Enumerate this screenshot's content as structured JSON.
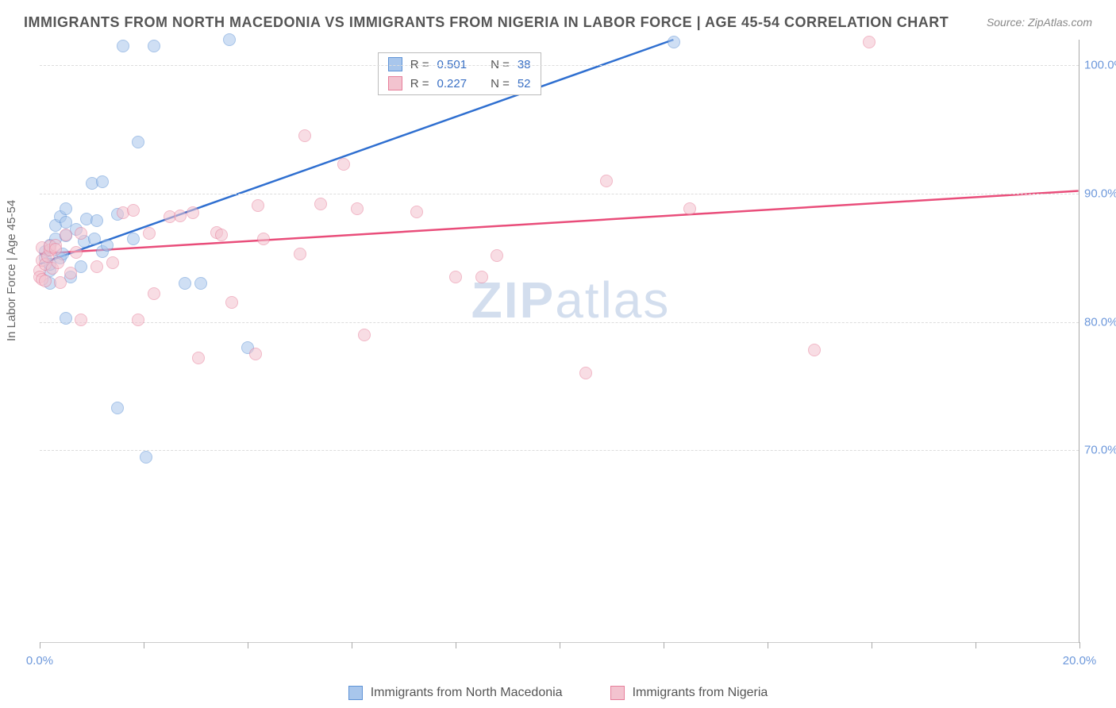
{
  "title": "IMMIGRANTS FROM NORTH MACEDONIA VS IMMIGRANTS FROM NIGERIA IN LABOR FORCE | AGE 45-54 CORRELATION CHART",
  "source": "Source: ZipAtlas.com",
  "y_axis_label": "In Labor Force | Age 45-54",
  "watermark_bold": "ZIP",
  "watermark_rest": "atlas",
  "watermark_color": "#d3deee",
  "chart": {
    "type": "scatter",
    "background_color": "#ffffff",
    "grid_color": "#dddddd",
    "axis_color": "#aaaaaa",
    "tick_label_color": "#6d98db",
    "xlim": [
      0,
      20
    ],
    "ylim": [
      55,
      102
    ],
    "x_ticks": [
      0,
      2,
      4,
      6,
      8,
      10,
      12,
      14,
      16,
      18,
      20
    ],
    "x_tick_labels": {
      "0": "0.0%",
      "20": "20.0%"
    },
    "y_ticks": [
      70,
      80,
      90,
      100
    ],
    "y_tick_labels": {
      "70": "70.0%",
      "80": "80.0%",
      "90": "90.0%",
      "100": "100.0%"
    },
    "marker_radius": 8,
    "marker_opacity": 0.55,
    "line_width": 2.5,
    "series": [
      {
        "name": "Immigrants from North Macedonia",
        "fill_color": "#a8c6ec",
        "stroke_color": "#5f93d6",
        "line_color": "#2f6fd0",
        "R": "0.501",
        "N": "38",
        "trend": {
          "x1": 0,
          "y1": 84.5,
          "x2": 12.2,
          "y2": 102
        },
        "points": [
          [
            0.1,
            85.0
          ],
          [
            0.1,
            85.5
          ],
          [
            0.2,
            84.0
          ],
          [
            0.2,
            86.0
          ],
          [
            0.2,
            84.5
          ],
          [
            0.2,
            83.0
          ],
          [
            0.3,
            87.5
          ],
          [
            0.3,
            86.5
          ],
          [
            0.4,
            85.0
          ],
          [
            0.4,
            88.2
          ],
          [
            0.45,
            85.3
          ],
          [
            0.5,
            86.7
          ],
          [
            0.5,
            87.8
          ],
          [
            0.5,
            88.8
          ],
          [
            0.5,
            80.3
          ],
          [
            0.6,
            83.5
          ],
          [
            0.7,
            87.2
          ],
          [
            0.8,
            84.3
          ],
          [
            0.85,
            86.3
          ],
          [
            0.9,
            88.0
          ],
          [
            1.0,
            90.8
          ],
          [
            1.05,
            86.5
          ],
          [
            1.1,
            87.9
          ],
          [
            1.2,
            85.5
          ],
          [
            1.2,
            90.9
          ],
          [
            1.3,
            86.0
          ],
          [
            1.5,
            88.4
          ],
          [
            1.5,
            73.3
          ],
          [
            1.6,
            101.5
          ],
          [
            1.8,
            86.5
          ],
          [
            1.9,
            94.0
          ],
          [
            2.05,
            69.5
          ],
          [
            2.2,
            101.5
          ],
          [
            2.8,
            83.0
          ],
          [
            3.1,
            83.0
          ],
          [
            3.65,
            102.0
          ],
          [
            4.0,
            78.0
          ],
          [
            12.2,
            101.8
          ]
        ]
      },
      {
        "name": "Immigrants from Nigeria",
        "fill_color": "#f3c3cf",
        "stroke_color": "#e77f9b",
        "line_color": "#e94d7a",
        "R": "0.227",
        "N": "52",
        "trend": {
          "x1": 0,
          "y1": 85.3,
          "x2": 20,
          "y2": 90.2
        },
        "points": [
          [
            0.0,
            84.0
          ],
          [
            0.0,
            83.5
          ],
          [
            0.05,
            83.3
          ],
          [
            0.05,
            85.8
          ],
          [
            0.05,
            84.8
          ],
          [
            0.1,
            83.2
          ],
          [
            0.1,
            84.5
          ],
          [
            0.15,
            85.1
          ],
          [
            0.2,
            85.6
          ],
          [
            0.2,
            85.9
          ],
          [
            0.25,
            84.2
          ],
          [
            0.3,
            86.0
          ],
          [
            0.3,
            85.7
          ],
          [
            0.35,
            84.6
          ],
          [
            0.4,
            83.1
          ],
          [
            0.5,
            86.8
          ],
          [
            0.6,
            83.8
          ],
          [
            0.7,
            85.4
          ],
          [
            0.8,
            86.9
          ],
          [
            0.8,
            80.2
          ],
          [
            1.1,
            84.3
          ],
          [
            1.4,
            84.6
          ],
          [
            1.6,
            88.5
          ],
          [
            1.8,
            88.7
          ],
          [
            1.9,
            80.2
          ],
          [
            2.1,
            86.9
          ],
          [
            2.2,
            82.2
          ],
          [
            2.5,
            88.2
          ],
          [
            2.7,
            88.3
          ],
          [
            2.95,
            88.5
          ],
          [
            3.05,
            77.2
          ],
          [
            3.4,
            87.0
          ],
          [
            3.5,
            86.8
          ],
          [
            3.7,
            81.5
          ],
          [
            4.15,
            77.5
          ],
          [
            4.2,
            89.1
          ],
          [
            4.3,
            86.5
          ],
          [
            5.0,
            85.3
          ],
          [
            5.1,
            94.5
          ],
          [
            5.4,
            89.2
          ],
          [
            5.85,
            92.3
          ],
          [
            6.1,
            88.8
          ],
          [
            6.25,
            79.0
          ],
          [
            7.25,
            88.6
          ],
          [
            8.0,
            83.5
          ],
          [
            8.5,
            83.5
          ],
          [
            8.8,
            85.2
          ],
          [
            10.5,
            76.0
          ],
          [
            10.9,
            91.0
          ],
          [
            12.5,
            88.8
          ],
          [
            14.9,
            77.8
          ],
          [
            15.95,
            101.8
          ]
        ]
      }
    ]
  },
  "legend_top": {
    "R_label": "R =",
    "N_label": "N ="
  },
  "legend_bottom": [
    {
      "swatch_fill": "#a8c6ec",
      "swatch_stroke": "#5f93d6",
      "label": "Immigrants from North Macedonia"
    },
    {
      "swatch_fill": "#f3c3cf",
      "swatch_stroke": "#e77f9b",
      "label": "Immigrants from Nigeria"
    }
  ]
}
